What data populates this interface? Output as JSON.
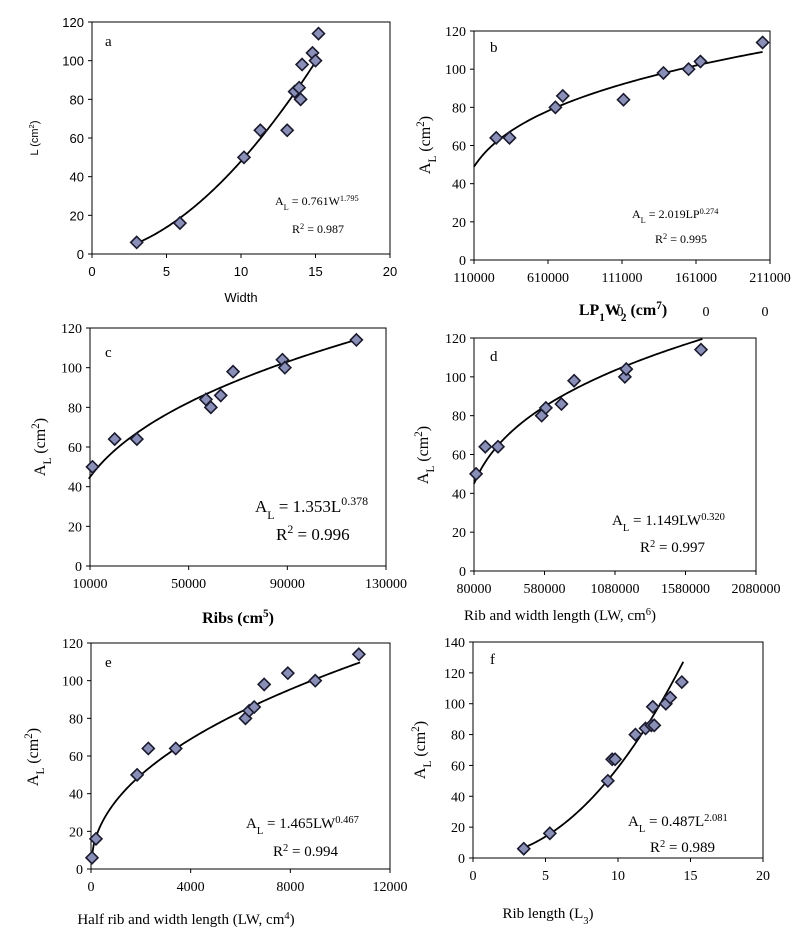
{
  "chart_data": [
    {
      "id": "a",
      "type": "scatter",
      "letter": "a",
      "xlabel": "Width",
      "ylabel": "L (cm2)",
      "xlim": [
        0,
        20
      ],
      "ylim": [
        0,
        120
      ],
      "xticks": [
        0,
        5,
        10,
        15,
        20
      ],
      "yticks": [
        0,
        20,
        40,
        60,
        80,
        100,
        120
      ],
      "x": [
        3.0,
        5.9,
        10.2,
        11.3,
        13.1,
        13.6,
        13.9,
        14.0,
        14.1,
        14.8,
        15.0,
        15.2
      ],
      "y": [
        6,
        16,
        50,
        64,
        64,
        84,
        86,
        80,
        98,
        104,
        100,
        114
      ],
      "fit": {
        "a": 0.761,
        "b": 1.795,
        "xrange": [
          3.0,
          15.2
        ]
      },
      "eq_lines": [
        "AL = 0.761W1.795",
        "R2 = 0.987"
      ]
    },
    {
      "id": "b",
      "type": "scatter",
      "letter": "b",
      "xlabel": "LP1W2 (cm7)",
      "ylabel": "AL (cm2)",
      "xlim": [
        110000,
        2110000
      ],
      "ylim": [
        0,
        120
      ],
      "xtick_labels": [
        "110000",
        "610000",
        "111000",
        "161000",
        "211000"
      ],
      "xtick_labels2": [
        "0",
        "0",
        "0"
      ],
      "yticks": [
        0,
        20,
        40,
        60,
        80,
        100,
        120
      ],
      "x": [
        260000,
        350000,
        660000,
        710000,
        1120000,
        1390000,
        1560000,
        1640000,
        2060000
      ],
      "y": [
        64,
        64,
        80,
        86,
        84,
        98,
        100,
        104,
        114
      ],
      "fit": {
        "a": 2.019,
        "b": 0.274,
        "xrange": [
          110000,
          2060000
        ]
      },
      "eq_lines": [
        "AL = 2.019LP0.274",
        "R2 = 0.995"
      ]
    },
    {
      "id": "c",
      "type": "scatter",
      "letter": "c",
      "xlabel": "Ribs (cm5)",
      "ylabel": "AL (cm2)",
      "xlim": [
        10000,
        130000
      ],
      "ylim": [
        0,
        120
      ],
      "xticks": [
        10000,
        50000,
        90000,
        130000
      ],
      "yticks": [
        0,
        20,
        40,
        60,
        80,
        100,
        120
      ],
      "x": [
        11000,
        20000,
        29000,
        57000,
        59000,
        63000,
        68000,
        88000,
        89000,
        118000
      ],
      "y": [
        50,
        64,
        64,
        84,
        80,
        86,
        98,
        104,
        100,
        114
      ],
      "fit": {
        "a": 1.353,
        "b": 0.378,
        "xrange": [
          9500,
          118000
        ]
      },
      "eq_lines": [
        "AL = 1.353L0.378",
        "R2 = 0.996"
      ]
    },
    {
      "id": "d",
      "type": "scatter",
      "letter": "d",
      "xlabel": "Rib and width length (LW, cm6)",
      "ylabel": "AL (cm2)",
      "xlim": [
        80000,
        2080000
      ],
      "ylim": [
        0,
        120
      ],
      "xticks": [
        80000,
        580000,
        1080000,
        1580000,
        2080000
      ],
      "yticks": [
        0,
        20,
        40,
        60,
        80,
        100,
        120
      ],
      "x": [
        95000,
        160000,
        250000,
        560000,
        590000,
        700000,
        790000,
        1150000,
        1160000,
        1690000
      ],
      "y": [
        50,
        64,
        64,
        80,
        84,
        86,
        98,
        100,
        104,
        114
      ],
      "fit": {
        "a": 1.149,
        "b": 0.32,
        "xrange": [
          80000,
          1700000
        ]
      },
      "eq_lines": [
        "AL = 1.149LW0.320",
        "R2 = 0.997"
      ]
    },
    {
      "id": "e",
      "type": "scatter",
      "letter": "e",
      "xlabel": "Half rib and width length (LW, cm4)",
      "ylabel": "AL (cm2)",
      "xlim": [
        0,
        12000
      ],
      "ylim": [
        0,
        120
      ],
      "xticks": [
        0,
        4000,
        8000,
        12000
      ],
      "yticks": [
        0,
        20,
        40,
        60,
        80,
        100,
        120
      ],
      "x": [
        40,
        200,
        1850,
        2300,
        3400,
        6200,
        6350,
        6550,
        6950,
        7900,
        9000,
        10750
      ],
      "y": [
        6,
        16,
        50,
        64,
        64,
        80,
        84,
        86,
        98,
        104,
        100,
        114
      ],
      "fit": {
        "a": 1.465,
        "b": 0.467,
        "xrange": [
          20,
          10800
        ]
      },
      "eq_lines": [
        "AL = 1.465LW0.467",
        "R2 = 0.994"
      ]
    },
    {
      "id": "f",
      "type": "scatter",
      "letter": "f",
      "xlabel": "Rib length (L3)",
      "ylabel": "AL (cm2)",
      "xlim": [
        0,
        20
      ],
      "ylim": [
        0,
        140
      ],
      "xticks": [
        0,
        5,
        10,
        15,
        20
      ],
      "yticks": [
        0,
        20,
        40,
        60,
        80,
        100,
        120,
        140
      ],
      "x": [
        3.5,
        5.3,
        9.3,
        9.6,
        9.8,
        11.2,
        11.9,
        12.3,
        12.4,
        12.5,
        13.3,
        13.6,
        14.4
      ],
      "y": [
        6,
        16,
        50,
        64,
        64,
        80,
        84,
        86,
        98,
        86,
        100,
        104,
        114
      ],
      "fit": {
        "a": 0.487,
        "b": 2.081,
        "xrange": [
          3.5,
          14.5
        ]
      },
      "eq_lines": [
        "AL = 0.487L2.081",
        "R2 = 0.989"
      ]
    }
  ]
}
